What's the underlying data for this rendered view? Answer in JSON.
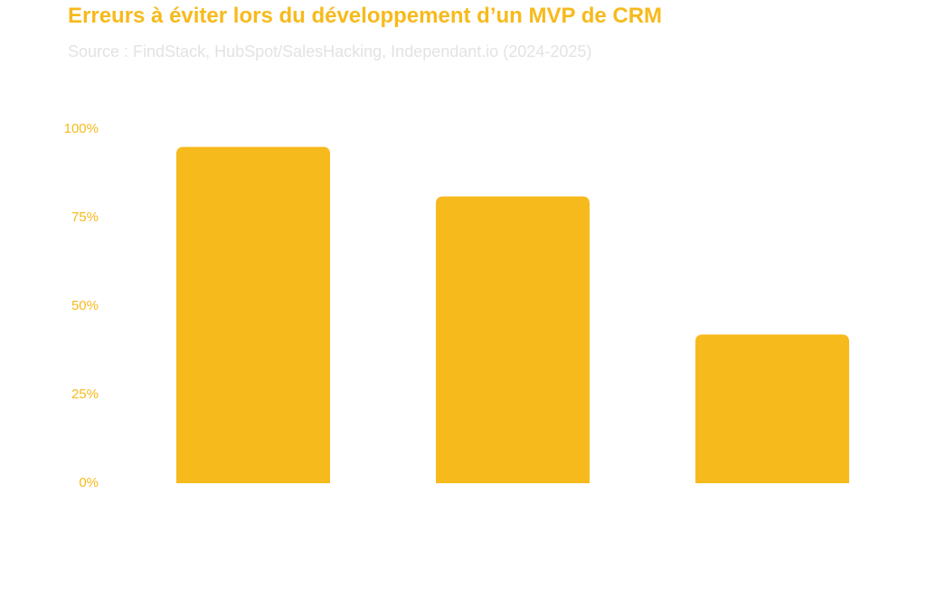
{
  "colors": {
    "accent": "#F7BA1C",
    "subtitle": "#E3E3E3",
    "background": "#FFFFFF"
  },
  "title": "Erreurs à éviter lors du développement d’un MVP de CRM",
  "subtitle": "Source : FindStack, HubSpot/SalesHacking, Independant.io (2024-2025)",
  "chart_data": {
    "type": "bar",
    "categories": [
      "",
      "",
      ""
    ],
    "values": [
      95,
      81,
      42
    ],
    "unit": "%",
    "ylim": [
      0,
      100
    ],
    "yticks": [
      {
        "value": 100,
        "label": "100%"
      },
      {
        "value": 75,
        "label": "75%"
      },
      {
        "value": 50,
        "label": "50%"
      },
      {
        "value": 25,
        "label": "25%"
      },
      {
        "value": 0,
        "label": "0%"
      }
    ],
    "xlabel": "",
    "ylabel": "",
    "grid": false,
    "legend": "none"
  }
}
